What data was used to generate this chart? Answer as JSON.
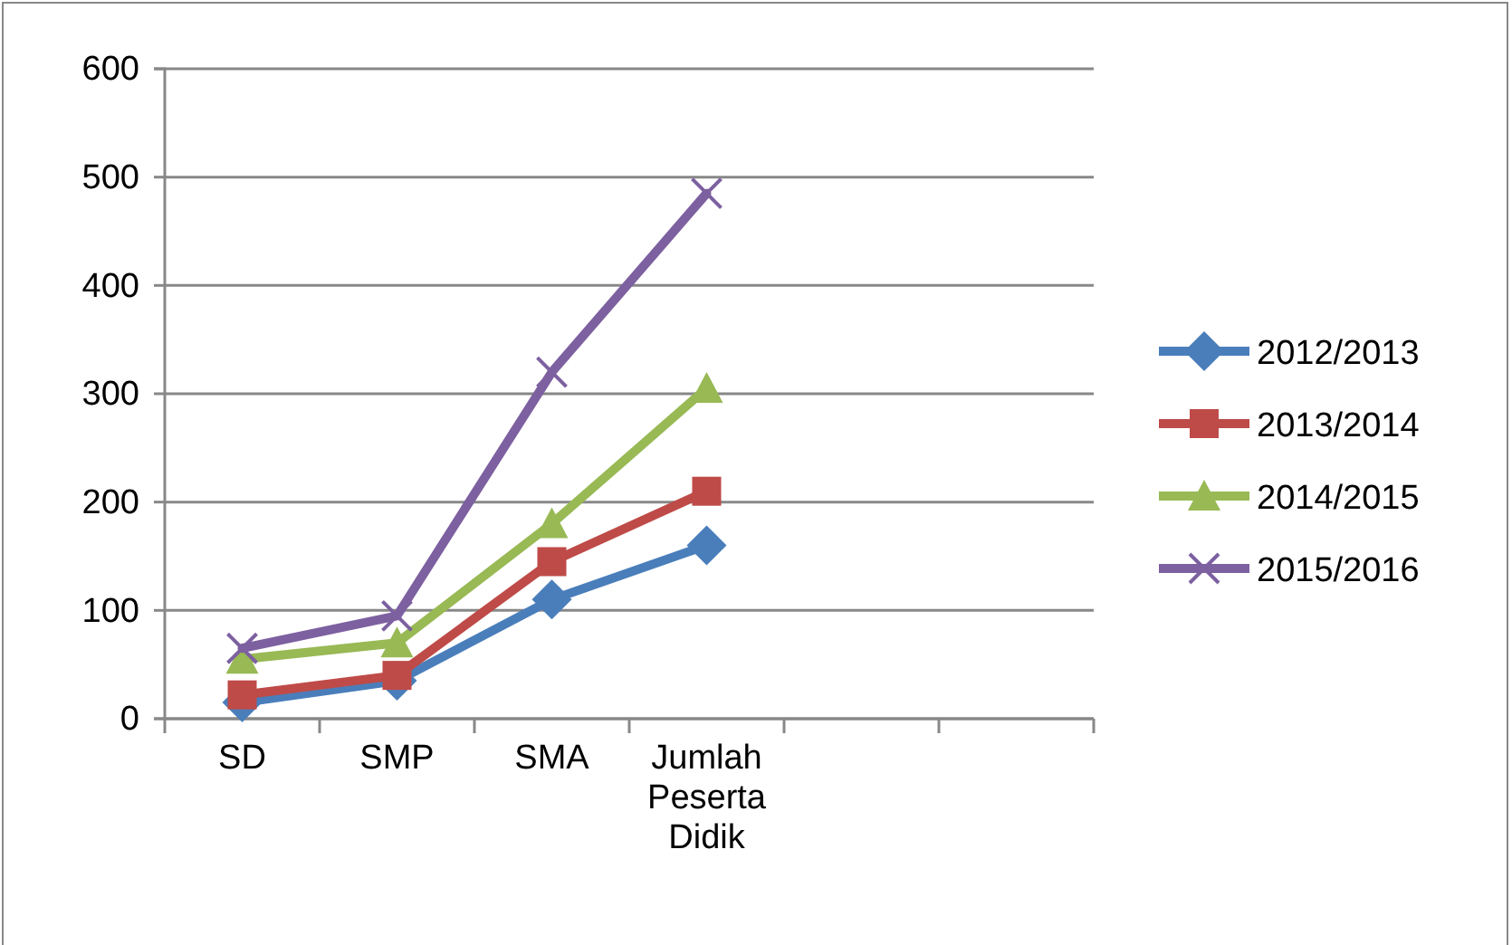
{
  "chart_data": {
    "type": "line",
    "categories": [
      "SD",
      "SMP",
      "SMA",
      "Jumlah Peserta Didik",
      null,
      null
    ],
    "series": [
      {
        "name": "2012/2013",
        "color": "#4a7ebb",
        "marker": "diamond",
        "values": [
          15,
          35,
          110,
          160,
          null,
          null
        ]
      },
      {
        "name": "2013/2014",
        "color": "#be4b48",
        "marker": "square",
        "values": [
          22,
          40,
          145,
          210,
          null,
          null
        ]
      },
      {
        "name": "2014/2015",
        "color": "#98b954",
        "marker": "triangle",
        "values": [
          55,
          70,
          180,
          305,
          null,
          null
        ]
      },
      {
        "name": "2015/2016",
        "color": "#7d60a0",
        "marker": "cross",
        "values": [
          65,
          95,
          320,
          485,
          null,
          null
        ]
      }
    ],
    "ylim": [
      0,
      600
    ],
    "yticks": [
      0,
      100,
      200,
      300,
      400,
      500,
      600
    ],
    "grid": "y",
    "legend": "right",
    "line_style": "solid"
  }
}
